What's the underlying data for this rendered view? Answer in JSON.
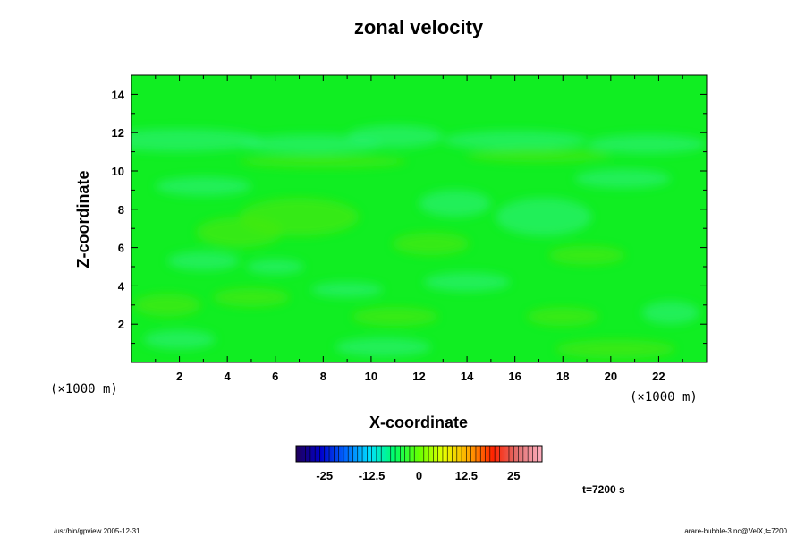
{
  "chart_data": {
    "type": "heatmap",
    "title": "zonal velocity",
    "xlabel": "X-coordinate",
    "ylabel": "Z-coordinate",
    "x_units": "(×1000 m)",
    "z_units": "(×1000 m)",
    "xlim": [
      0,
      24
    ],
    "zlim": [
      0,
      15
    ],
    "x_ticks": [
      "2",
      "4",
      "6",
      "8",
      "10",
      "12",
      "14",
      "16",
      "18",
      "20",
      "22"
    ],
    "z_ticks": [
      "2",
      "4",
      "6",
      "8",
      "10",
      "12",
      "14"
    ],
    "colorbar": {
      "range": [
        -32.5,
        32.5
      ],
      "ticks": [
        {
          "value": -25,
          "label": "-25"
        },
        {
          "value": -12.5,
          "label": "-12.5"
        },
        {
          "value": 0,
          "label": "0"
        },
        {
          "value": 12.5,
          "label": "12.5"
        },
        {
          "value": 25,
          "label": "25"
        }
      ]
    },
    "time_label": "t=7200 s",
    "grid": false,
    "colors": {
      "field_base": "#10ee22",
      "field_light": "#2af070",
      "field_dark": "#46e80e",
      "colorbar_stops": [
        "#20005a",
        "#0000cc",
        "#0066ff",
        "#00e0ff",
        "#00ff66",
        "#66ff00",
        "#e8ff00",
        "#ffaa00",
        "#ff2200",
        "#e07070",
        "#ffb0c0"
      ]
    }
  },
  "footer": {
    "left": "/usr/bin/gpview 2005-12-31",
    "right": "arare-bubble-3.nc@VelX,t=7200"
  }
}
